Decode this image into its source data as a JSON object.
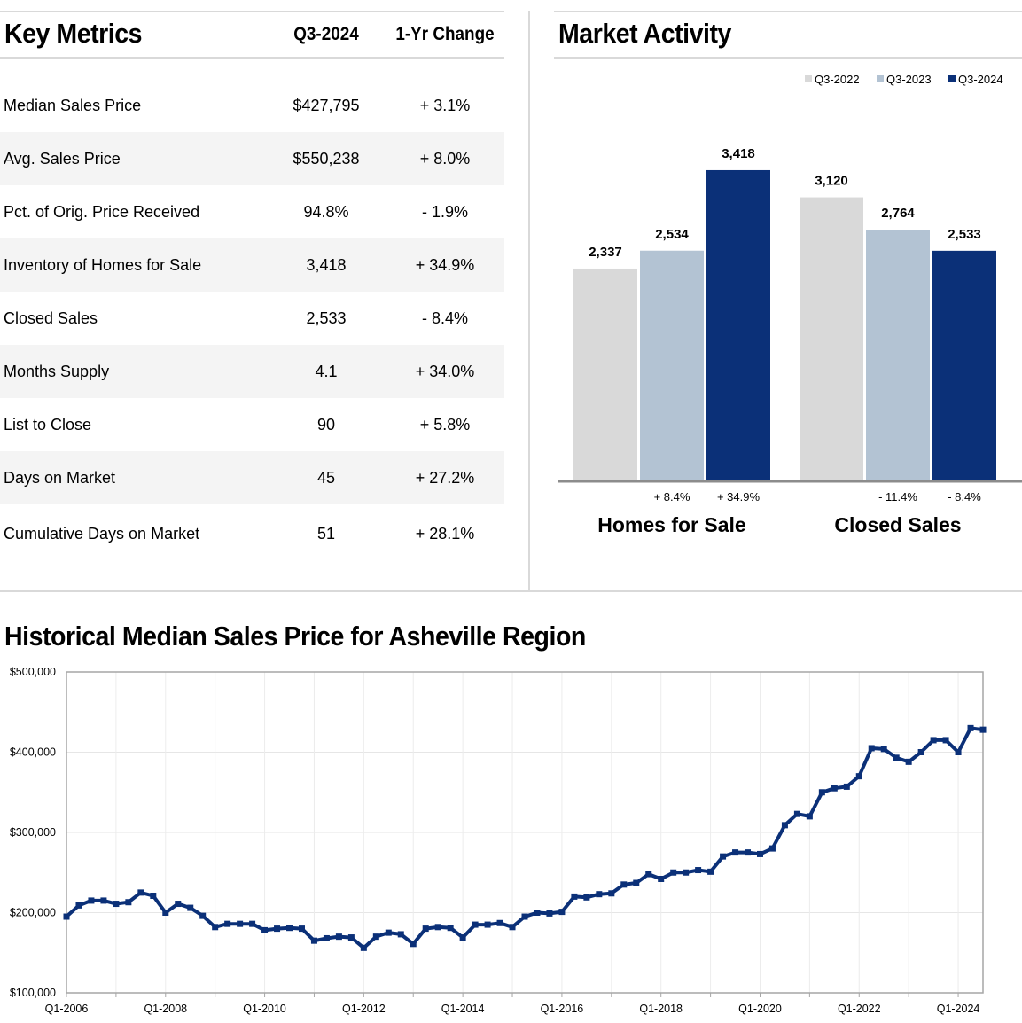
{
  "key_metrics": {
    "title": "Key Metrics",
    "col_current": "Q3-2024",
    "col_change": "1-Yr Change",
    "rows": [
      {
        "name": "Median Sales Price",
        "value": "$427,795",
        "change": "+ 3.1%"
      },
      {
        "name": "Avg. Sales Price",
        "value": "$550,238",
        "change": "+ 8.0%"
      },
      {
        "name": "Pct. of Orig. Price Received",
        "value": "94.8%",
        "change": "- 1.9%"
      },
      {
        "name": "Inventory of Homes for Sale",
        "value": "3,418",
        "change": "+ 34.9%"
      },
      {
        "name": "Closed Sales",
        "value": "2,533",
        "change": "- 8.4%"
      },
      {
        "name": "Months Supply",
        "value": "4.1",
        "change": "+ 34.0%"
      },
      {
        "name": "List to Close",
        "value": "90",
        "change": "+ 5.8%"
      },
      {
        "name": "Days on Market",
        "value": "45",
        "change": "+ 27.2%"
      },
      {
        "name": "Cumulative Days on Market",
        "value": "51",
        "change": "+ 28.1%"
      }
    ]
  },
  "market_activity": {
    "title": "Market Activity",
    "chart_data": {
      "type": "bar",
      "categories": [
        "Homes for Sale",
        "Closed Sales"
      ],
      "series": [
        {
          "name": "Q3-2022",
          "color": "#d9d9d9",
          "values": [
            2337,
            3120
          ],
          "labels": [
            "2,337",
            "3,120"
          ]
        },
        {
          "name": "Q3-2023",
          "color": "#b3c3d3",
          "values": [
            2534,
            2764
          ],
          "labels": [
            "2,534",
            "2,764"
          ]
        },
        {
          "name": "Q3-2024",
          "color": "#0b3078",
          "values": [
            3418,
            2533
          ],
          "labels": [
            "3,418",
            "2,533"
          ]
        }
      ],
      "changes": [
        [
          "",
          "+ 8.4%",
          "+ 34.9%"
        ],
        [
          "",
          "- 11.4%",
          "- 8.4%"
        ]
      ],
      "ylim": [
        0,
        3700
      ],
      "legend": "top-right"
    }
  },
  "history": {
    "title": "Historical Median Sales Price for Asheville Region",
    "chart_data": {
      "type": "line",
      "color": "#0b3078",
      "ylim": [
        100000,
        500000
      ],
      "y_ticks": [
        100000,
        200000,
        300000,
        400000,
        500000
      ],
      "y_tick_labels": [
        "$100,000",
        "$200,000",
        "$300,000",
        "$400,000",
        "$500,000"
      ],
      "x_tick_labels": [
        "Q1-2006",
        "Q1-2008",
        "Q1-2010",
        "Q1-2012",
        "Q1-2014",
        "Q1-2016",
        "Q1-2018",
        "Q1-2020",
        "Q1-2022",
        "Q1-2024"
      ],
      "x_start": "Q1-2006",
      "x_end": "Q3-2024",
      "grid": true,
      "values": [
        195000,
        209000,
        215000,
        215000,
        211000,
        213000,
        225000,
        221000,
        200000,
        211000,
        206000,
        196000,
        182000,
        186000,
        186000,
        186000,
        178000,
        180000,
        181000,
        180000,
        165000,
        168000,
        170000,
        169000,
        156000,
        170000,
        175000,
        173000,
        161000,
        180000,
        182000,
        181000,
        169000,
        185000,
        185000,
        187000,
        182000,
        195000,
        200000,
        199000,
        201000,
        220000,
        219000,
        223000,
        224000,
        235000,
        237000,
        248000,
        242000,
        250000,
        250000,
        253000,
        251000,
        270000,
        275000,
        275000,
        273000,
        280000,
        309000,
        323000,
        320000,
        350000,
        355000,
        357000,
        370000,
        405000,
        404000,
        393000,
        388000,
        400000,
        415000,
        415000,
        400000,
        430000,
        428000
      ]
    }
  }
}
